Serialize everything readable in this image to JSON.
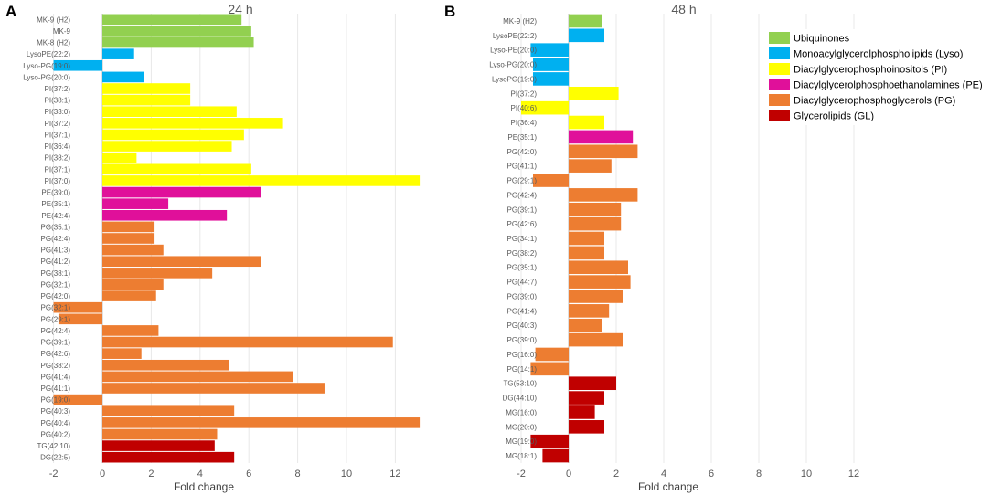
{
  "legend": [
    {
      "label": "Ubiquinones",
      "color": "#92d050"
    },
    {
      "label": "Monoacylglycerolphospholipids (Lyso)",
      "color": "#00b0f0"
    },
    {
      "label": "Diacylglycerophosphoinositols (PI)",
      "color": "#ffff00"
    },
    {
      "label": "Diacylglycerolphosphoethanolamines (PE)",
      "color": "#e0109a"
    },
    {
      "label": "Diacylglycerophosphoglycerols (PG)",
      "color": "#ed7d31"
    },
    {
      "label": "Glycerolipids (GL)",
      "color": "#c00000"
    }
  ],
  "chart_data": [
    {
      "type": "bar",
      "orientation": "horizontal",
      "panel": "A",
      "title": "24 h",
      "xlabel": "Fold change",
      "ylabel": "",
      "xlim": [
        -2,
        13
      ],
      "xticks": [
        -2,
        0,
        2,
        4,
        6,
        8,
        10,
        12
      ],
      "grid": true,
      "categories": [
        "MK-9 (H2)",
        "MK-9",
        "MK-8 (H2)",
        "LysoPE(22:2)",
        "Lyso-PG(19:0)",
        "Lyso-PG(20:0)",
        "PI(37:2)",
        "PI(38:1)",
        "PI(33:0)",
        "PI(37:2)",
        "PI(37:1)",
        "PI(36:4)",
        "PI(38:2)",
        "PI(37:1)",
        "PI(37:0)",
        "PE(39:0)",
        "PE(35:1)",
        "PE(42:4)",
        "PG(35:1)",
        "PG(42:4)",
        "PG(41:3)",
        "PG(41:2)",
        "PG(38:1)",
        "PG(32:1)",
        "PG(42:0)",
        "PG(32:1)",
        "PG(29:1)",
        "PG(42:4)",
        "PG(39:1)",
        "PG(42:6)",
        "PG(38:2)",
        "PG(41:4)",
        "PG(41:1)",
        "PG(19:0)",
        "PG(40:3)",
        "PG(40:4)",
        "PG(40:2)",
        "TG(42:10)",
        "DG(22:5)"
      ],
      "values": [
        5.7,
        6.1,
        6.2,
        1.3,
        -2.0,
        1.7,
        3.6,
        3.6,
        5.5,
        7.4,
        5.8,
        5.3,
        1.4,
        6.1,
        13.0,
        6.5,
        2.7,
        5.1,
        2.1,
        2.1,
        2.5,
        6.5,
        4.5,
        2.5,
        2.2,
        -2.0,
        -1.8,
        2.3,
        11.9,
        1.6,
        5.2,
        7.8,
        9.1,
        -2.0,
        5.4,
        13.0,
        4.7,
        4.6,
        5.4
      ],
      "groups": [
        "Ubiquinones",
        "Ubiquinones",
        "Ubiquinones",
        "Lyso",
        "Lyso",
        "Lyso",
        "PI",
        "PI",
        "PI",
        "PI",
        "PI",
        "PI",
        "PI",
        "PI",
        "PI",
        "PE",
        "PE",
        "PE",
        "PG",
        "PG",
        "PG",
        "PG",
        "PG",
        "PG",
        "PG",
        "PG",
        "PG",
        "PG",
        "PG",
        "PG",
        "PG",
        "PG",
        "PG",
        "PG",
        "PG",
        "PG",
        "PG",
        "GL",
        "GL"
      ]
    },
    {
      "type": "bar",
      "orientation": "horizontal",
      "panel": "B",
      "title": "48 h",
      "xlabel": "Fold change",
      "ylabel": "",
      "xlim": [
        -2,
        13
      ],
      "xticks": [
        -2,
        0,
        2,
        4,
        6,
        8,
        10,
        12
      ],
      "grid": true,
      "categories": [
        "MK-9 (H2)",
        "LysoPE(22:2)",
        "Lyso-PE(20:0)",
        "Lyso-PG(20:0)",
        "LysoPG(19:0)",
        "PI(37:2)",
        "PI(40:6)",
        "PI(36:4)",
        "PE(35:1)",
        "PG(42:0)",
        "PG(41:1)",
        "PG(29:1)",
        "PG(42:4)",
        "PG(39:1)",
        "PG(42:6)",
        "PG(34:1)",
        "PG(38:2)",
        "PG(35:1)",
        "PG(44:7)",
        "PG(39:0)",
        "PG(41:4)",
        "PG(40:3)",
        "PG(39:0)",
        "PG(16:0)",
        "PG(14:1)",
        "TG(53:10)",
        "DG(44:10)",
        "MG(16:0)",
        "MG(20:0)",
        "MG(19:0)",
        "MG(18:1)"
      ],
      "values": [
        1.4,
        1.5,
        -1.6,
        -1.5,
        -1.5,
        2.1,
        -2.0,
        1.5,
        2.7,
        2.9,
        1.8,
        -1.5,
        2.9,
        2.2,
        2.2,
        1.5,
        1.5,
        2.5,
        2.6,
        2.3,
        1.7,
        1.4,
        2.3,
        -1.4,
        -1.6,
        2.0,
        1.5,
        1.1,
        1.5,
        -1.6,
        -1.1
      ],
      "groups": [
        "Ubiquinones",
        "Lyso",
        "Lyso",
        "Lyso",
        "Lyso",
        "PI",
        "PI",
        "PI",
        "PE",
        "PG",
        "PG",
        "PG",
        "PG",
        "PG",
        "PG",
        "PG",
        "PG",
        "PG",
        "PG",
        "PG",
        "PG",
        "PG",
        "PG",
        "PG",
        "PG",
        "GL",
        "GL",
        "GL",
        "GL",
        "GL",
        "GL"
      ]
    }
  ]
}
